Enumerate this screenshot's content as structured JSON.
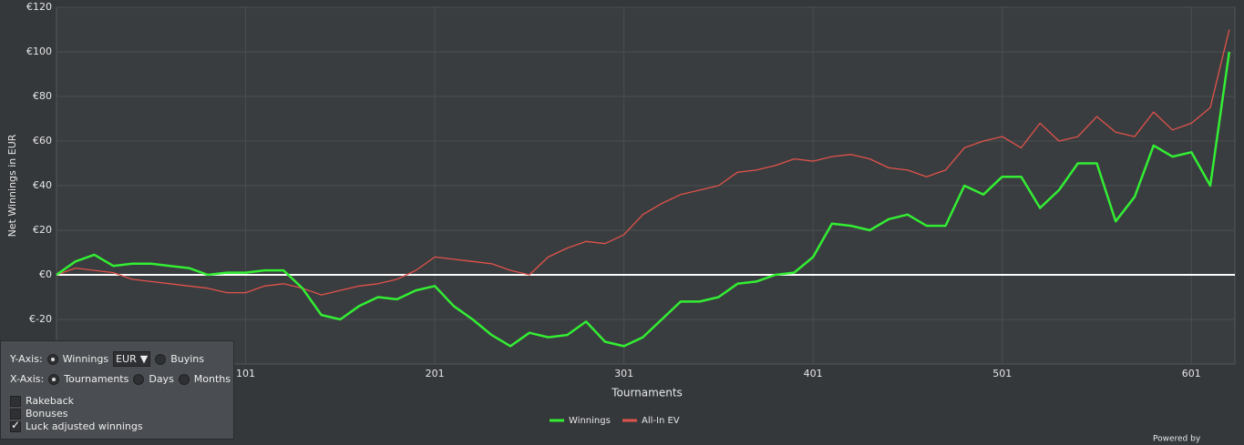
{
  "chart_data": {
    "type": "line",
    "y_label": "Net Winnings in EUR",
    "x_label": "Tournaments",
    "x": [
      1,
      11,
      21,
      31,
      41,
      51,
      61,
      71,
      81,
      91,
      101,
      111,
      121,
      131,
      141,
      151,
      161,
      171,
      181,
      191,
      201,
      211,
      221,
      231,
      241,
      251,
      261,
      271,
      281,
      291,
      301,
      311,
      321,
      331,
      341,
      351,
      361,
      371,
      381,
      391,
      401,
      411,
      421,
      431,
      441,
      451,
      461,
      471,
      481,
      491,
      501,
      511,
      521,
      531,
      541,
      551,
      561,
      571,
      581,
      591,
      601,
      611,
      621
    ],
    "series": [
      {
        "name": "Winnings",
        "color": "#33ee33",
        "values": [
          0,
          6,
          9,
          4,
          5,
          5,
          4,
          3,
          0,
          1,
          1,
          2,
          2,
          -6,
          -18,
          -20,
          -14,
          -10,
          -11,
          -7,
          -5,
          -14,
          -20,
          -27,
          -32,
          -26,
          -28,
          -27,
          -21,
          -30,
          -32,
          -28,
          -20,
          -12,
          -12,
          -10,
          -4,
          -3,
          0,
          1,
          8,
          23,
          22,
          20,
          25,
          27,
          22,
          22,
          40,
          36,
          44,
          44,
          30,
          38,
          50,
          50,
          24,
          35,
          58,
          53,
          55,
          40,
          100
        ]
      },
      {
        "name": "All-In EV",
        "color": "#e0524a",
        "values": [
          0,
          3,
          2,
          1,
          -2,
          -3,
          -4,
          -5,
          -6,
          -8,
          -8,
          -5,
          -4,
          -6,
          -9,
          -7,
          -5,
          -4,
          -2,
          2,
          8,
          7,
          6,
          5,
          2,
          0,
          8,
          12,
          15,
          14,
          18,
          27,
          32,
          36,
          38,
          40,
          46,
          47,
          49,
          52,
          51,
          53,
          54,
          52,
          48,
          47,
          44,
          47,
          57,
          60,
          62,
          57,
          68,
          60,
          62,
          71,
          64,
          62,
          73,
          65,
          68,
          75,
          110
        ]
      }
    ],
    "xlim": [
      1,
      624
    ],
    "xticks": [
      101,
      201,
      301,
      401,
      501,
      601
    ],
    "ylim": [
      -40,
      120
    ],
    "yticks": [
      {
        "value": -20,
        "label": "€-20"
      },
      {
        "value": 0,
        "label": "€0"
      },
      {
        "value": 20,
        "label": "€20"
      },
      {
        "value": 40,
        "label": "€40"
      },
      {
        "value": 60,
        "label": "€60"
      },
      {
        "value": 80,
        "label": "€80"
      },
      {
        "value": 100,
        "label": "€100"
      },
      {
        "value": 120,
        "label": "€120"
      }
    ],
    "grid": true,
    "legend": "bottom"
  },
  "controls": {
    "y_axis": "Y-Axis:",
    "winnings": "Winnings",
    "currency": "EUR",
    "buyins": "Buyins",
    "x_axis": "X-Axis:",
    "tournaments": "Tournaments",
    "days": "Days",
    "months": "Months",
    "rakeback": "Rakeback",
    "bonuses": "Bonuses",
    "luck": "Luck adjusted winnings"
  },
  "footer": {
    "powered": "Powered by"
  }
}
